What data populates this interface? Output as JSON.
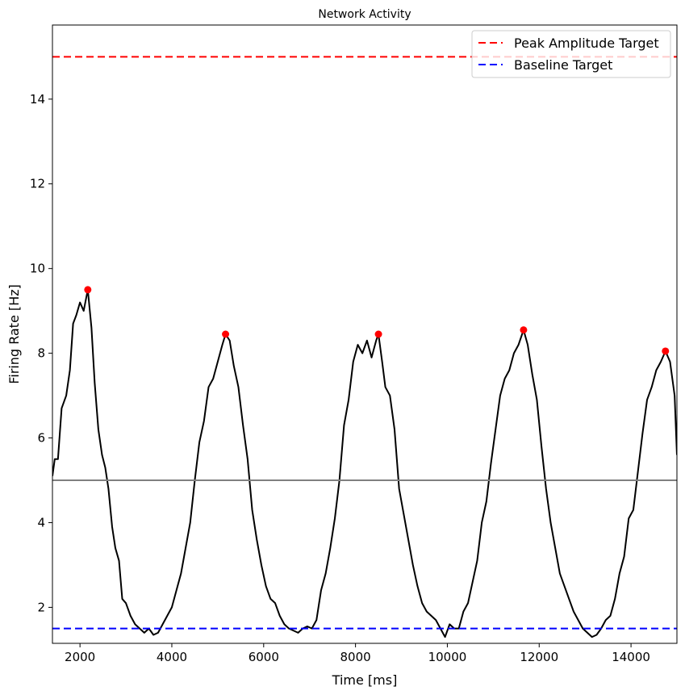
{
  "chart_data": {
    "type": "line",
    "title": "Network Activity",
    "xlabel": "Time [ms]",
    "ylabel": "Firing Rate [Hz]",
    "xlim": [
      1400,
      15000
    ],
    "ylim": [
      1.15,
      15.75
    ],
    "xticks": [
      2000,
      4000,
      6000,
      8000,
      10000,
      12000,
      14000
    ],
    "yticks": [
      2,
      4,
      6,
      8,
      10,
      12,
      14
    ],
    "grid": false,
    "legend_position": "top-right",
    "series": [
      {
        "name": "",
        "color": "#000000",
        "style": "solid",
        "points": [
          [
            1400,
            5.1
          ],
          [
            1450,
            5.5
          ],
          [
            1520,
            5.5
          ],
          [
            1600,
            6.7
          ],
          [
            1700,
            7.0
          ],
          [
            1780,
            7.6
          ],
          [
            1850,
            8.7
          ],
          [
            1920,
            8.9
          ],
          [
            2000,
            9.2
          ],
          [
            2080,
            9.0
          ],
          [
            2170,
            9.5
          ],
          [
            2250,
            8.6
          ],
          [
            2320,
            7.3
          ],
          [
            2400,
            6.2
          ],
          [
            2480,
            5.6
          ],
          [
            2550,
            5.3
          ],
          [
            2620,
            4.8
          ],
          [
            2700,
            3.9
          ],
          [
            2770,
            3.4
          ],
          [
            2850,
            3.1
          ],
          [
            2920,
            2.2
          ],
          [
            3000,
            2.1
          ],
          [
            3100,
            1.8
          ],
          [
            3200,
            1.6
          ],
          [
            3300,
            1.5
          ],
          [
            3400,
            1.4
          ],
          [
            3500,
            1.5
          ],
          [
            3600,
            1.35
          ],
          [
            3700,
            1.4
          ],
          [
            3800,
            1.6
          ],
          [
            3900,
            1.8
          ],
          [
            4000,
            2.0
          ],
          [
            4100,
            2.4
          ],
          [
            4200,
            2.8
          ],
          [
            4300,
            3.4
          ],
          [
            4400,
            4.0
          ],
          [
            4500,
            5.0
          ],
          [
            4600,
            5.9
          ],
          [
            4700,
            6.4
          ],
          [
            4800,
            7.2
          ],
          [
            4900,
            7.4
          ],
          [
            5000,
            7.8
          ],
          [
            5100,
            8.2
          ],
          [
            5170,
            8.45
          ],
          [
            5260,
            8.3
          ],
          [
            5350,
            7.7
          ],
          [
            5450,
            7.2
          ],
          [
            5550,
            6.3
          ],
          [
            5650,
            5.5
          ],
          [
            5750,
            4.3
          ],
          [
            5850,
            3.6
          ],
          [
            5950,
            3.0
          ],
          [
            6050,
            2.5
          ],
          [
            6150,
            2.2
          ],
          [
            6250,
            2.1
          ],
          [
            6350,
            1.8
          ],
          [
            6450,
            1.6
          ],
          [
            6550,
            1.5
          ],
          [
            6650,
            1.45
          ],
          [
            6750,
            1.4
          ],
          [
            6850,
            1.5
          ],
          [
            6950,
            1.55
          ],
          [
            7050,
            1.5
          ],
          [
            7150,
            1.7
          ],
          [
            7250,
            2.4
          ],
          [
            7350,
            2.8
          ],
          [
            7450,
            3.4
          ],
          [
            7550,
            4.1
          ],
          [
            7650,
            5.0
          ],
          [
            7750,
            6.3
          ],
          [
            7850,
            6.9
          ],
          [
            7950,
            7.8
          ],
          [
            8050,
            8.2
          ],
          [
            8150,
            8.0
          ],
          [
            8250,
            8.3
          ],
          [
            8350,
            7.9
          ],
          [
            8450,
            8.3
          ],
          [
            8500,
            8.45
          ],
          [
            8580,
            7.8
          ],
          [
            8650,
            7.2
          ],
          [
            8750,
            7.0
          ],
          [
            8850,
            6.2
          ],
          [
            8950,
            4.8
          ],
          [
            9050,
            4.2
          ],
          [
            9150,
            3.6
          ],
          [
            9250,
            3.0
          ],
          [
            9350,
            2.5
          ],
          [
            9450,
            2.1
          ],
          [
            9550,
            1.9
          ],
          [
            9650,
            1.8
          ],
          [
            9750,
            1.7
          ],
          [
            9850,
            1.5
          ],
          [
            9950,
            1.3
          ],
          [
            10050,
            1.6
          ],
          [
            10150,
            1.5
          ],
          [
            10250,
            1.5
          ],
          [
            10350,
            1.9
          ],
          [
            10450,
            2.1
          ],
          [
            10550,
            2.6
          ],
          [
            10650,
            3.1
          ],
          [
            10750,
            4.0
          ],
          [
            10850,
            4.5
          ],
          [
            10950,
            5.4
          ],
          [
            11050,
            6.2
          ],
          [
            11150,
            7.0
          ],
          [
            11250,
            7.4
          ],
          [
            11350,
            7.6
          ],
          [
            11450,
            8.0
          ],
          [
            11550,
            8.2
          ],
          [
            11660,
            8.55
          ],
          [
            11750,
            8.2
          ],
          [
            11850,
            7.5
          ],
          [
            11950,
            6.9
          ],
          [
            12050,
            5.8
          ],
          [
            12150,
            4.8
          ],
          [
            12250,
            4.0
          ],
          [
            12350,
            3.4
          ],
          [
            12450,
            2.8
          ],
          [
            12550,
            2.5
          ],
          [
            12650,
            2.2
          ],
          [
            12750,
            1.9
          ],
          [
            12850,
            1.7
          ],
          [
            12950,
            1.5
          ],
          [
            13050,
            1.4
          ],
          [
            13150,
            1.3
          ],
          [
            13250,
            1.35
          ],
          [
            13350,
            1.5
          ],
          [
            13450,
            1.7
          ],
          [
            13550,
            1.8
          ],
          [
            13650,
            2.2
          ],
          [
            13750,
            2.8
          ],
          [
            13850,
            3.2
          ],
          [
            13950,
            4.1
          ],
          [
            14050,
            4.3
          ],
          [
            14150,
            5.2
          ],
          [
            14250,
            6.1
          ],
          [
            14350,
            6.9
          ],
          [
            14450,
            7.2
          ],
          [
            14550,
            7.6
          ],
          [
            14650,
            7.8
          ],
          [
            14750,
            8.05
          ],
          [
            14850,
            7.8
          ],
          [
            14950,
            7.0
          ],
          [
            15000,
            5.6
          ]
        ]
      },
      {
        "name": "",
        "color": "#808080",
        "style": "solid",
        "hline": 5.0
      },
      {
        "name": "Peak Amplitude Target",
        "color": "#ff0000",
        "style": "dashed",
        "hline": 15.0
      },
      {
        "name": "Baseline Target",
        "color": "#0000ff",
        "style": "dashed",
        "hline": 1.5
      }
    ],
    "peaks": {
      "color": "#ff0000",
      "points": [
        [
          2170,
          9.5
        ],
        [
          5170,
          8.45
        ],
        [
          8500,
          8.45
        ],
        [
          11660,
          8.55
        ],
        [
          14750,
          8.05
        ]
      ]
    },
    "legend": [
      {
        "label": "Peak Amplitude Target",
        "color": "#ff0000",
        "style": "dashed"
      },
      {
        "label": "Baseline Target",
        "color": "#0000ff",
        "style": "dashed"
      }
    ]
  }
}
